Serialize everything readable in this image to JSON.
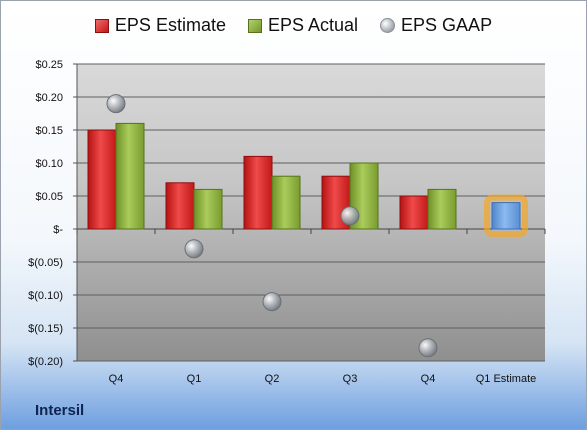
{
  "chart_data": {
    "type": "bar",
    "title": "",
    "categories": [
      "Q4",
      "Q1",
      "Q2",
      "Q3",
      "Q4",
      "Q1 Estimate"
    ],
    "series": [
      {
        "name": "EPS Estimate",
        "type": "bar",
        "color": "#d92323",
        "values": [
          0.15,
          0.07,
          0.11,
          0.08,
          0.05,
          null
        ]
      },
      {
        "name": "EPS Actual",
        "type": "bar",
        "color": "#8cb040",
        "values": [
          0.16,
          0.06,
          0.08,
          0.1,
          0.06,
          null
        ]
      },
      {
        "name": "EPS GAAP",
        "type": "scatter",
        "color": "#a9aeb5",
        "values": [
          0.19,
          -0.03,
          -0.11,
          0.02,
          -0.18,
          null
        ]
      }
    ],
    "estimate": {
      "category": "Q1 Estimate",
      "value": 0.04,
      "color": "#6fa3e0",
      "glow": "#f5a623"
    },
    "ylim": [
      -0.2,
      0.25
    ],
    "yticks": [
      0.25,
      0.2,
      0.15,
      0.1,
      0.05,
      0,
      -0.05,
      -0.1,
      -0.15,
      -0.2
    ],
    "ytick_labels": [
      "$0.25",
      "$0.20",
      "$0.15",
      "$0.10",
      "$0.05",
      "$-",
      "$(0.05)",
      "$(0.10)",
      "$(0.15)",
      "$(0.20)"
    ],
    "grid": true,
    "legend_position": "top-center"
  },
  "legend": {
    "estimate": "EPS Estimate",
    "actual": "EPS Actual",
    "gaap": "EPS GAAP"
  },
  "company": "Intersil"
}
